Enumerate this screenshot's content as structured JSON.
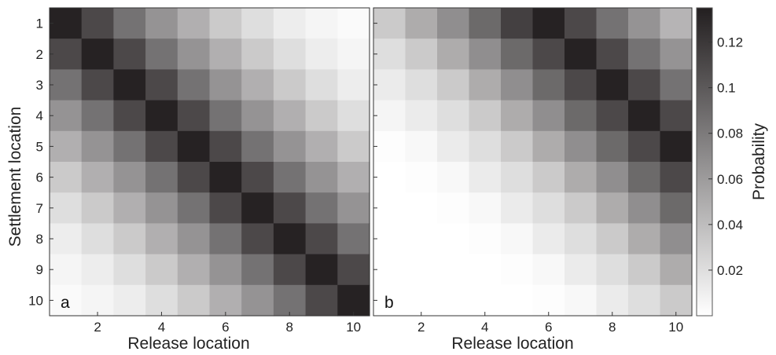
{
  "chart_data": {
    "type": "heatmap",
    "colormap": {
      "low": "#ffffff",
      "high": "#231f20"
    },
    "clim": [
      0,
      0.135
    ],
    "colorbar": {
      "label": "Probability",
      "ticks": [
        0.02,
        0.04,
        0.06,
        0.08,
        0.1,
        0.12
      ],
      "tick_labels": [
        "0.02",
        "0.04",
        "0.06",
        "0.08",
        "0.1",
        "0.12"
      ]
    },
    "panels": [
      {
        "label": "a",
        "xlabel": "Release location",
        "ylabel": "Settlement location",
        "x_ticks": [
          2,
          4,
          6,
          8,
          10
        ],
        "x_tick_labels": [
          "2",
          "4",
          "6",
          "8",
          "10"
        ],
        "y_ticks": [
          1,
          2,
          3,
          4,
          5,
          6,
          7,
          8,
          9,
          10
        ],
        "y_tick_labels": [
          "1",
          "2",
          "3",
          "4",
          "5",
          "6",
          "7",
          "8",
          "9",
          "10"
        ],
        "rows": [
          1,
          2,
          3,
          4,
          5,
          6,
          7,
          8,
          9,
          10
        ],
        "cols": [
          1,
          2,
          3,
          4,
          5,
          6,
          7,
          8,
          9,
          10
        ],
        "values": [
          [
            0.133,
            0.11,
            0.085,
            0.065,
            0.048,
            0.032,
            0.02,
            0.011,
            0.006,
            0.003
          ],
          [
            0.11,
            0.133,
            0.11,
            0.085,
            0.065,
            0.048,
            0.032,
            0.02,
            0.011,
            0.006
          ],
          [
            0.085,
            0.11,
            0.133,
            0.11,
            0.085,
            0.065,
            0.048,
            0.032,
            0.02,
            0.011
          ],
          [
            0.065,
            0.085,
            0.11,
            0.133,
            0.11,
            0.085,
            0.065,
            0.048,
            0.032,
            0.02
          ],
          [
            0.048,
            0.065,
            0.085,
            0.11,
            0.133,
            0.11,
            0.085,
            0.065,
            0.048,
            0.032
          ],
          [
            0.032,
            0.048,
            0.065,
            0.085,
            0.11,
            0.133,
            0.11,
            0.085,
            0.065,
            0.048
          ],
          [
            0.02,
            0.032,
            0.048,
            0.065,
            0.085,
            0.11,
            0.133,
            0.11,
            0.085,
            0.065
          ],
          [
            0.011,
            0.02,
            0.032,
            0.048,
            0.065,
            0.085,
            0.11,
            0.133,
            0.11,
            0.085
          ],
          [
            0.006,
            0.011,
            0.02,
            0.032,
            0.048,
            0.065,
            0.085,
            0.11,
            0.133,
            0.11
          ],
          [
            0.003,
            0.006,
            0.011,
            0.02,
            0.032,
            0.048,
            0.065,
            0.085,
            0.11,
            0.133
          ]
        ]
      },
      {
        "label": "b",
        "xlabel": "Release location",
        "ylabel": "",
        "x_ticks": [
          2,
          4,
          6,
          8,
          10
        ],
        "x_tick_labels": [
          "2",
          "4",
          "6",
          "8",
          "10"
        ],
        "y_ticks": [
          1,
          2,
          3,
          4,
          5,
          6,
          7,
          8,
          9,
          10
        ],
        "y_tick_labels": [],
        "rows": [
          1,
          2,
          3,
          4,
          5,
          6,
          7,
          8,
          9,
          10
        ],
        "cols": [
          1,
          2,
          3,
          4,
          5,
          6,
          7,
          8,
          9,
          10
        ],
        "values": [
          [
            0.032,
            0.05,
            0.068,
            0.09,
            0.115,
            0.133,
            0.11,
            0.085,
            0.065,
            0.045
          ],
          [
            0.02,
            0.032,
            0.05,
            0.068,
            0.09,
            0.11,
            0.133,
            0.11,
            0.085,
            0.065
          ],
          [
            0.012,
            0.02,
            0.032,
            0.05,
            0.068,
            0.09,
            0.11,
            0.133,
            0.11,
            0.085
          ],
          [
            0.006,
            0.012,
            0.02,
            0.032,
            0.05,
            0.068,
            0.09,
            0.11,
            0.133,
            0.11
          ],
          [
            0.001,
            0.004,
            0.012,
            0.02,
            0.032,
            0.05,
            0.068,
            0.09,
            0.11,
            0.133
          ],
          [
            0.0,
            0.001,
            0.004,
            0.012,
            0.02,
            0.032,
            0.05,
            0.068,
            0.09,
            0.11
          ],
          [
            0.0,
            0.0,
            0.001,
            0.004,
            0.012,
            0.02,
            0.032,
            0.05,
            0.068,
            0.09
          ],
          [
            0.0,
            0.0,
            0.0,
            0.001,
            0.004,
            0.012,
            0.02,
            0.032,
            0.05,
            0.068
          ],
          [
            0.0,
            0.0,
            0.0,
            0.0,
            0.001,
            0.004,
            0.012,
            0.02,
            0.032,
            0.05
          ],
          [
            0.0,
            0.0,
            0.0,
            0.0,
            0.0,
            0.001,
            0.004,
            0.012,
            0.02,
            0.032
          ]
        ]
      }
    ]
  }
}
